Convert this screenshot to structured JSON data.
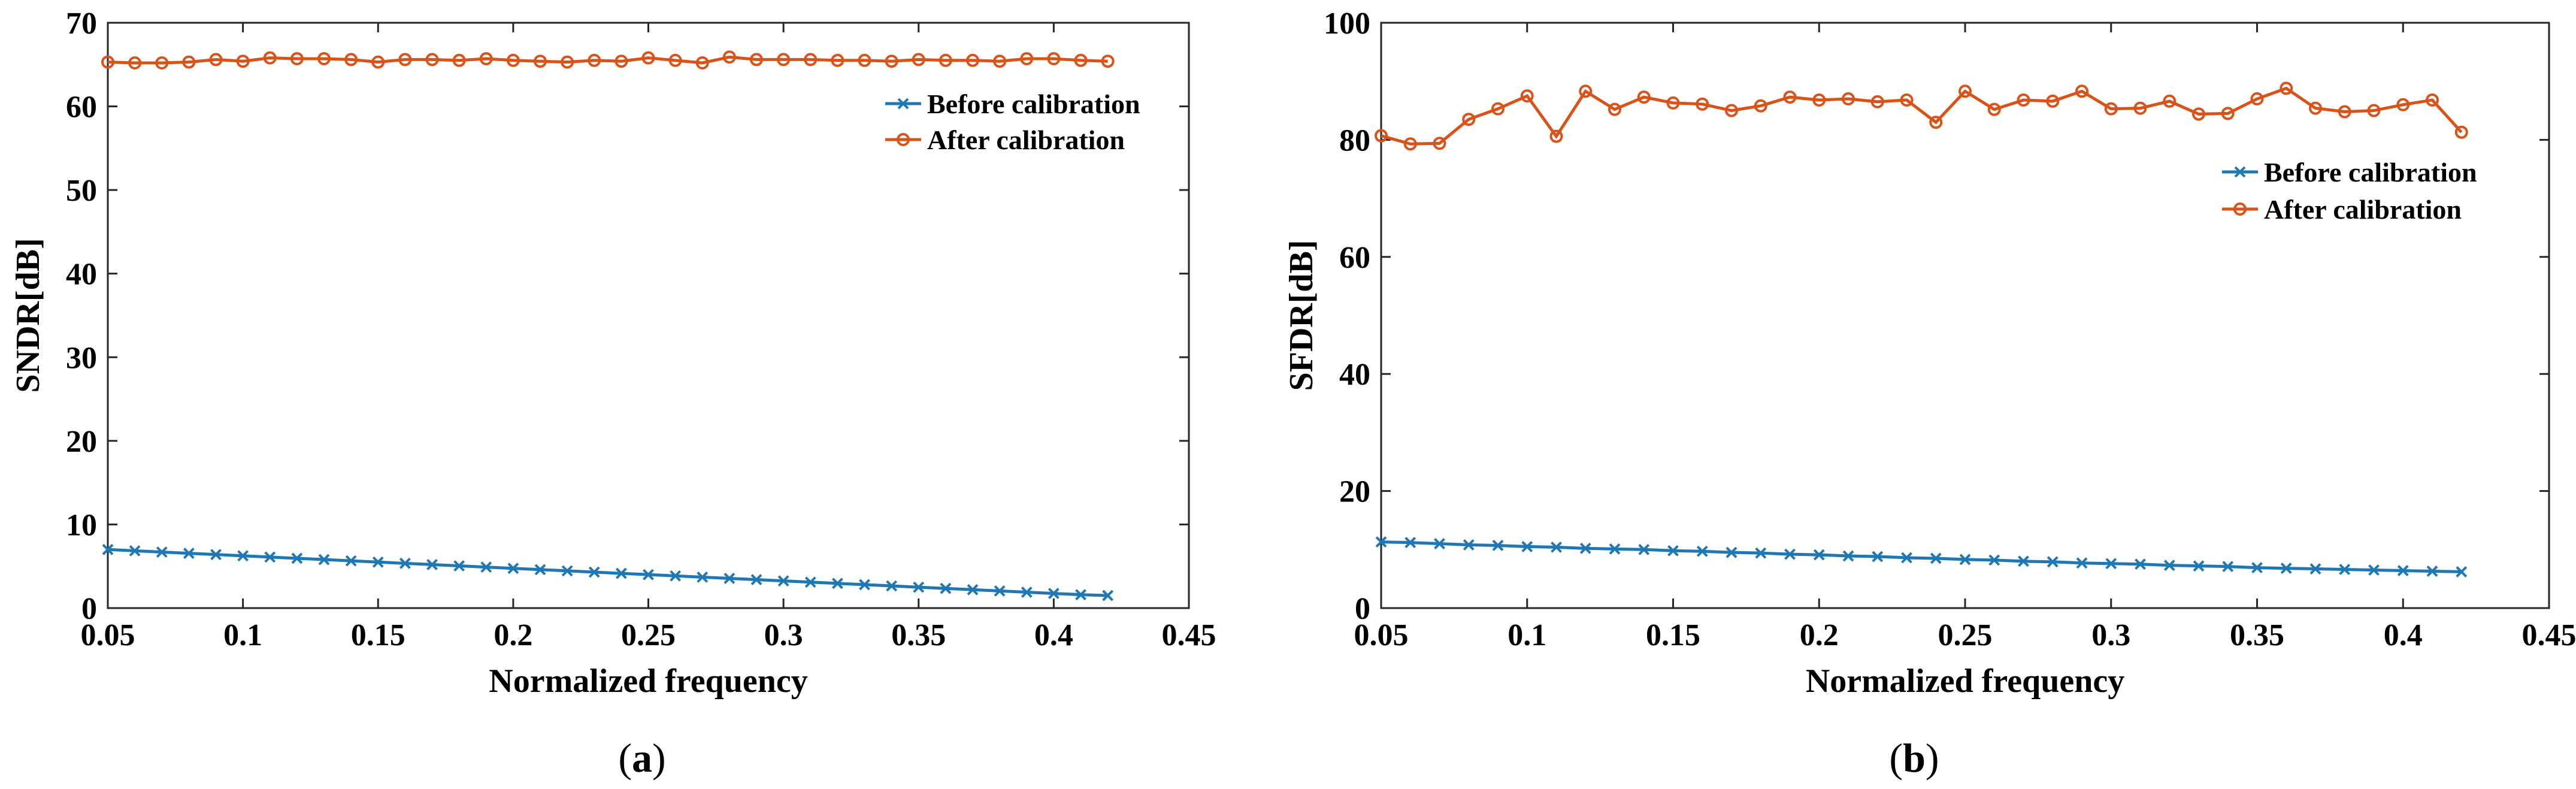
{
  "chart_data": [
    {
      "type": "line",
      "panel_label": "a",
      "xlabel": "Normalized frequency",
      "ylabel": "SNDR[dB]",
      "xlim": [
        0.05,
        0.45
      ],
      "ylim": [
        0,
        70
      ],
      "xticks": [
        "0.05",
        "0.1",
        "0.15",
        "0.2",
        "0.25",
        "0.3",
        "0.35",
        "0.4",
        "0.45"
      ],
      "yticks": [
        "0",
        "10",
        "20",
        "30",
        "40",
        "50",
        "60",
        "70"
      ],
      "legend_position": "top-right",
      "x": [
        0.05,
        0.06,
        0.07,
        0.08,
        0.09,
        0.1,
        0.11,
        0.12,
        0.13,
        0.14,
        0.15,
        0.16,
        0.17,
        0.18,
        0.19,
        0.2,
        0.21,
        0.22,
        0.23,
        0.24,
        0.25,
        0.26,
        0.27,
        0.28,
        0.29,
        0.3,
        0.31,
        0.32,
        0.33,
        0.34,
        0.35,
        0.36,
        0.37,
        0.38,
        0.39,
        0.4,
        0.41,
        0.42
      ],
      "series": [
        {
          "name": "Before calibration",
          "color": "#1f77b4",
          "marker": "x",
          "values": [
            7.0,
            6.85,
            6.7,
            6.55,
            6.4,
            6.25,
            6.1,
            5.95,
            5.8,
            5.65,
            5.5,
            5.35,
            5.2,
            5.05,
            4.9,
            4.75,
            4.6,
            4.45,
            4.3,
            4.15,
            4.0,
            3.85,
            3.7,
            3.55,
            3.4,
            3.25,
            3.1,
            2.95,
            2.8,
            2.65,
            2.5,
            2.35,
            2.2,
            2.05,
            1.9,
            1.75,
            1.6,
            1.5
          ]
        },
        {
          "name": "After calibration",
          "color": "#d95319",
          "marker": "o",
          "values": [
            65.3,
            65.2,
            65.2,
            65.3,
            65.6,
            65.4,
            65.8,
            65.7,
            65.7,
            65.6,
            65.3,
            65.6,
            65.6,
            65.5,
            65.7,
            65.5,
            65.4,
            65.3,
            65.5,
            65.4,
            65.8,
            65.5,
            65.2,
            65.9,
            65.6,
            65.6,
            65.6,
            65.5,
            65.5,
            65.4,
            65.6,
            65.5,
            65.5,
            65.4,
            65.7,
            65.7,
            65.5,
            65.4
          ]
        }
      ]
    },
    {
      "type": "line",
      "panel_label": "b",
      "xlabel": "Normalized frequency",
      "ylabel": "SFDR[dB]",
      "xlim": [
        0.05,
        0.45
      ],
      "ylim": [
        0,
        100
      ],
      "xticks": [
        "0.05",
        "0.1",
        "0.15",
        "0.2",
        "0.25",
        "0.3",
        "0.35",
        "0.4",
        "0.45"
      ],
      "yticks": [
        "0",
        "20",
        "40",
        "60",
        "80",
        "100"
      ],
      "legend_position": "upper-right",
      "x": [
        0.05,
        0.06,
        0.07,
        0.08,
        0.09,
        0.1,
        0.11,
        0.12,
        0.13,
        0.14,
        0.15,
        0.16,
        0.17,
        0.18,
        0.19,
        0.2,
        0.21,
        0.22,
        0.23,
        0.24,
        0.25,
        0.26,
        0.27,
        0.28,
        0.29,
        0.3,
        0.31,
        0.32,
        0.33,
        0.34,
        0.35,
        0.36,
        0.37,
        0.38,
        0.39,
        0.4,
        0.41,
        0.42
      ],
      "series": [
        {
          "name": "Before calibration",
          "color": "#1f77b4",
          "marker": "x",
          "values": [
            11.3,
            11.2,
            11.0,
            10.8,
            10.7,
            10.5,
            10.4,
            10.2,
            10.1,
            10.0,
            9.8,
            9.7,
            9.5,
            9.4,
            9.2,
            9.1,
            8.9,
            8.8,
            8.6,
            8.5,
            8.3,
            8.2,
            8.0,
            7.9,
            7.7,
            7.6,
            7.5,
            7.3,
            7.2,
            7.1,
            6.9,
            6.8,
            6.7,
            6.6,
            6.5,
            6.4,
            6.3,
            6.2
          ]
        },
        {
          "name": "After calibration",
          "color": "#d95319",
          "marker": "o",
          "values": [
            80.7,
            79.3,
            79.4,
            83.5,
            85.3,
            87.5,
            80.6,
            88.3,
            85.2,
            87.3,
            86.3,
            86.1,
            85.0,
            85.8,
            87.3,
            86.8,
            87.0,
            86.5,
            86.8,
            83.0,
            88.3,
            85.2,
            86.8,
            86.6,
            88.3,
            85.3,
            85.4,
            86.6,
            84.4,
            84.5,
            87.0,
            88.8,
            85.4,
            84.8,
            85.0,
            86.0,
            86.8,
            81.3
          ]
        }
      ]
    }
  ]
}
